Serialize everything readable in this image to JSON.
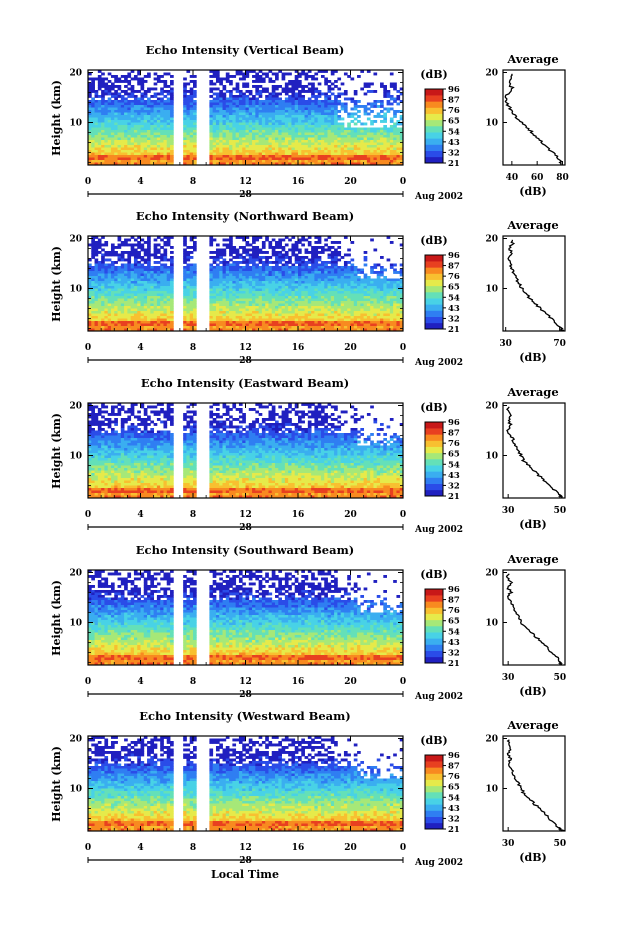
{
  "colormap": [
    "#2020c0",
    "#2a4ce8",
    "#2f7ef2",
    "#3aaef0",
    "#48d2e6",
    "#64e0b8",
    "#a6e878",
    "#e6ea4a",
    "#f8c030",
    "#f88a20",
    "#e84020",
    "#c81818"
  ],
  "colorbar": {
    "unit": "(dB)",
    "tick_labels": [
      "96",
      "87",
      "76",
      "65",
      "54",
      "43",
      "32",
      "21"
    ]
  },
  "panels": [
    {
      "title": "Echo Intensity (Vertical Beam)",
      "ylabel": "Height (km)",
      "xticks": [
        "0",
        "4",
        "8",
        "12",
        "16",
        "20",
        "0"
      ],
      "y_ticks": [
        "20",
        "10"
      ],
      "date_marker": "28",
      "date_label": "Aug 2002",
      "cb_labels": [
        "96",
        "87",
        "76",
        "65",
        "54",
        "43",
        "32",
        "21"
      ],
      "avg_title": "Average",
      "avg_xticks": [
        "40",
        "60",
        "80"
      ],
      "avg_yticks": [
        "20",
        "10"
      ],
      "avg_xlabel": "(dB)"
    },
    {
      "title": "Echo Intensity (Northward Beam)",
      "ylabel": "Height (km)",
      "xticks": [
        "0",
        "4",
        "8",
        "12",
        "16",
        "20",
        "0"
      ],
      "y_ticks": [
        "20",
        "10"
      ],
      "date_marker": "28",
      "date_label": "Aug 2002",
      "cb_labels": [
        "96",
        "87",
        "76",
        "65",
        "54",
        "43",
        "32",
        "21"
      ],
      "avg_title": "Average",
      "avg_xticks": [
        "30",
        "70"
      ],
      "avg_yticks": [
        "20",
        "10"
      ],
      "avg_xlabel": "(dB)"
    },
    {
      "title": "Echo Intensity (Eastward Beam)",
      "ylabel": "Height (km)",
      "xticks": [
        "0",
        "4",
        "8",
        "12",
        "16",
        "20",
        "0"
      ],
      "y_ticks": [
        "20",
        "10"
      ],
      "date_marker": "28",
      "date_label": "Aug 2002",
      "cb_labels": [
        "96",
        "87",
        "76",
        "65",
        "54",
        "43",
        "32",
        "21"
      ],
      "avg_title": "Average",
      "avg_xticks": [
        "30",
        "50"
      ],
      "avg_yticks": [
        "20",
        "10"
      ],
      "avg_xlabel": "(dB)"
    },
    {
      "title": "Echo Intensity (Southward Beam)",
      "ylabel": "Height (km)",
      "xticks": [
        "0",
        "4",
        "8",
        "12",
        "16",
        "20",
        "0"
      ],
      "y_ticks": [
        "20",
        "10"
      ],
      "date_marker": "28",
      "date_label": "Aug 2002",
      "cb_labels": [
        "96",
        "87",
        "76",
        "65",
        "54",
        "43",
        "32",
        "21"
      ],
      "avg_title": "Average",
      "avg_xticks": [
        "30",
        "50"
      ],
      "avg_yticks": [
        "20",
        "10"
      ],
      "avg_xlabel": "(dB)"
    },
    {
      "title": "Echo Intensity (Westward Beam)",
      "ylabel": "Height (km)",
      "xticks": [
        "0",
        "4",
        "8",
        "12",
        "16",
        "20",
        "0"
      ],
      "y_ticks": [
        "20",
        "10"
      ],
      "date_marker": "28",
      "date_label": "Aug 2002",
      "cb_labels": [
        "96",
        "87",
        "76",
        "65",
        "54",
        "43",
        "32",
        "21"
      ],
      "avg_title": "Average",
      "avg_xticks": [
        "30",
        "50"
      ],
      "avg_yticks": [
        "20",
        "10"
      ],
      "avg_xlabel": "(dB)"
    }
  ],
  "bottom_xlabel": "Local Time",
  "chart_data": [
    {
      "type": "heatmap",
      "title": "Echo Intensity (Vertical Beam)",
      "xlabel": "",
      "ylabel": "Height (km)",
      "xlim": [
        0,
        24
      ],
      "ylim": [
        1.5,
        20.5
      ],
      "x_ticks": [
        0,
        4,
        8,
        12,
        16,
        20,
        24
      ],
      "y_ticks": [
        10,
        20
      ],
      "colorbar_range_db": [
        21,
        96
      ],
      "data_gaps_hours": [
        [
          6.5,
          7.2
        ],
        [
          8.2,
          9.3
        ]
      ],
      "profile": {
        "title": "Average",
        "xlabel": "(dB)",
        "xlim": [
          33,
          82
        ],
        "height_km": [
          1.5,
          2,
          3,
          4,
          5,
          6,
          7,
          8,
          9,
          10,
          11,
          12,
          13,
          14,
          15,
          16,
          17,
          18,
          19,
          20
        ],
        "db": [
          80,
          79,
          76,
          72,
          68,
          64,
          60,
          56,
          52,
          48,
          44,
          41,
          38,
          36,
          35,
          38,
          40,
          37,
          40,
          39
        ]
      }
    },
    {
      "type": "heatmap",
      "title": "Echo Intensity (Northward Beam)",
      "xlabel": "",
      "ylabel": "Height (km)",
      "xlim": [
        0,
        24
      ],
      "ylim": [
        1.5,
        20.5
      ],
      "x_ticks": [
        0,
        4,
        8,
        12,
        16,
        20,
        24
      ],
      "y_ticks": [
        10,
        20
      ],
      "colorbar_range_db": [
        21,
        96
      ],
      "data_gaps_hours": [
        [
          6.5,
          7.2
        ],
        [
          8.2,
          9.3
        ]
      ],
      "profile": {
        "title": "Average",
        "xlabel": "(dB)",
        "xlim": [
          28,
          74
        ],
        "height_km": [
          1.5,
          2,
          3,
          4,
          5,
          6,
          7,
          8,
          9,
          10,
          11,
          12,
          13,
          14,
          15,
          16,
          17,
          18,
          19,
          20
        ],
        "db": [
          73,
          71,
          68,
          64,
          60,
          56,
          52,
          48,
          45,
          42,
          40,
          38,
          36,
          34,
          33,
          32,
          34,
          33,
          35,
          34
        ]
      }
    },
    {
      "type": "heatmap",
      "title": "Echo Intensity (Eastward Beam)",
      "xlabel": "",
      "ylabel": "Height (km)",
      "xlim": [
        0,
        24
      ],
      "ylim": [
        1.5,
        20.5
      ],
      "x_ticks": [
        0,
        4,
        8,
        12,
        16,
        20,
        24
      ],
      "y_ticks": [
        10,
        20
      ],
      "colorbar_range_db": [
        21,
        96
      ],
      "data_gaps_hours": [
        [
          6.5,
          7.2
        ],
        [
          8.2,
          9.3
        ]
      ],
      "profile": {
        "title": "Average",
        "xlabel": "(dB)",
        "xlim": [
          28,
          52
        ],
        "height_km": [
          1.5,
          2,
          3,
          4,
          5,
          6,
          7,
          8,
          9,
          10,
          11,
          12,
          13,
          14,
          15,
          16,
          17,
          18,
          19,
          20
        ],
        "db": [
          51,
          50,
          48,
          46,
          44,
          42,
          40,
          38,
          36,
          35,
          34,
          33,
          32,
          31,
          30,
          31,
          30,
          31,
          30,
          30
        ]
      }
    },
    {
      "type": "heatmap",
      "title": "Echo Intensity (Southward Beam)",
      "xlabel": "",
      "ylabel": "Height (km)",
      "xlim": [
        0,
        24
      ],
      "ylim": [
        1.5,
        20.5
      ],
      "x_ticks": [
        0,
        4,
        8,
        12,
        16,
        20,
        24
      ],
      "y_ticks": [
        10,
        20
      ],
      "colorbar_range_db": [
        21,
        96
      ],
      "data_gaps_hours": [
        [
          6.5,
          7.2
        ],
        [
          8.2,
          9.3
        ]
      ],
      "profile": {
        "title": "Average",
        "xlabel": "(dB)",
        "xlim": [
          28,
          52
        ],
        "height_km": [
          1.5,
          2,
          3,
          4,
          5,
          6,
          7,
          8,
          9,
          10,
          11,
          12,
          13,
          14,
          15,
          16,
          17,
          18,
          19,
          20
        ],
        "db": [
          51,
          50,
          49,
          47,
          45,
          43,
          41,
          39,
          37,
          35,
          34,
          33,
          32,
          31,
          30,
          31,
          30,
          31,
          30,
          30
        ]
      }
    },
    {
      "type": "heatmap",
      "title": "Echo Intensity (Westward Beam)",
      "xlabel": "",
      "ylabel": "Height (km)",
      "xlim": [
        0,
        24
      ],
      "ylim": [
        1.5,
        20.5
      ],
      "x_ticks": [
        0,
        4,
        8,
        12,
        16,
        20,
        24
      ],
      "y_ticks": [
        10,
        20
      ],
      "colorbar_range_db": [
        21,
        96
      ],
      "data_gaps_hours": [
        [
          6.5,
          7.2
        ],
        [
          8.2,
          9.3
        ]
      ],
      "profile": {
        "title": "Average",
        "xlabel": "(dB)",
        "xlim": [
          28,
          52
        ],
        "height_km": [
          1.5,
          2,
          3,
          4,
          5,
          6,
          7,
          8,
          9,
          10,
          11,
          12,
          13,
          14,
          15,
          16,
          17,
          18,
          19,
          20
        ],
        "db": [
          51,
          50,
          48,
          46,
          44,
          42,
          40,
          38,
          36,
          35,
          34,
          33,
          32,
          31,
          30,
          31,
          30,
          31,
          30,
          30
        ]
      }
    }
  ]
}
